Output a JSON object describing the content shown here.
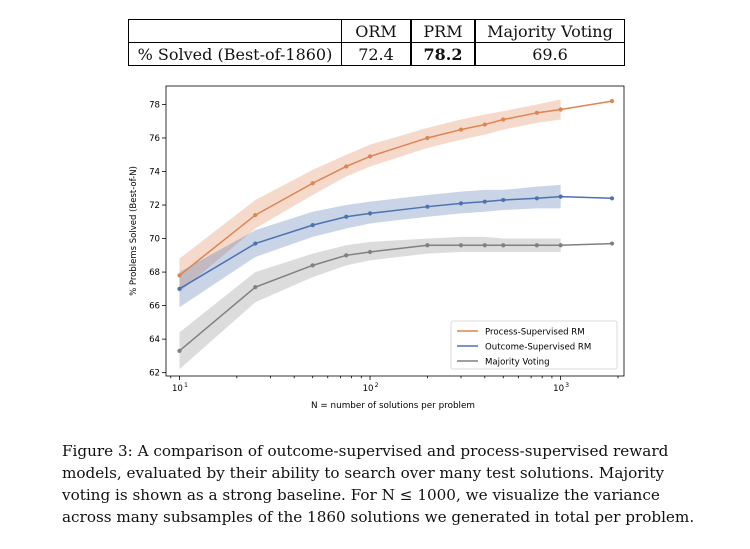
{
  "table": {
    "headers": [
      "",
      "ORM",
      "PRM",
      "Majority Voting"
    ],
    "row_label": "% Solved (Best-of-1860)",
    "row_values": [
      "72.4",
      "78.2",
      "69.6"
    ],
    "bold_value_index": 1
  },
  "chart_data": {
    "type": "line",
    "title": "",
    "xlabel": "N = number of solutions per problem",
    "ylabel": "% Problems Solved (Best-of-N)",
    "xscale": "log",
    "xlim": [
      8.5,
      2150
    ],
    "ylim": [
      61.8,
      79.1
    ],
    "xticks": [
      10,
      100,
      1000
    ],
    "xtick_labels": [
      "10",
      "10",
      "10"
    ],
    "xtick_exponents": [
      "1",
      "2",
      "3"
    ],
    "yticks": [
      62,
      64,
      66,
      68,
      70,
      72,
      74,
      76,
      78
    ],
    "ytick_labels": [
      "62",
      "64",
      "66",
      "68",
      "70",
      "72",
      "74",
      "76",
      "78"
    ],
    "grid": false,
    "legend_position": "lower-right",
    "series": [
      {
        "name": "Process-Supervised RM",
        "color": "#dd8452",
        "line_color": "#dd8452",
        "x": [
          10,
          25,
          50,
          75,
          100,
          200,
          300,
          400,
          500,
          750,
          1000,
          1860
        ],
        "y": [
          67.8,
          71.4,
          73.3,
          74.3,
          74.9,
          76.0,
          76.5,
          76.8,
          77.1,
          77.5,
          77.7,
          78.2
        ],
        "band_low": [
          66.8,
          70.6,
          72.6,
          73.7,
          74.3,
          75.4,
          75.9,
          76.2,
          76.5,
          76.9,
          77.1
        ],
        "band_high": [
          68.8,
          72.3,
          74.1,
          75.0,
          75.6,
          76.6,
          77.1,
          77.4,
          77.6,
          78.0,
          78.3
        ]
      },
      {
        "name": "Outcome-Supervised RM",
        "color": "#4c72b0",
        "line_color": "#4c72b0",
        "x": [
          10,
          25,
          50,
          75,
          100,
          200,
          300,
          400,
          500,
          750,
          1000,
          1860
        ],
        "y": [
          67.0,
          69.7,
          70.8,
          71.3,
          71.5,
          71.9,
          72.1,
          72.2,
          72.3,
          72.4,
          72.5,
          72.4
        ],
        "band_low": [
          65.9,
          68.9,
          70.1,
          70.6,
          70.9,
          71.3,
          71.5,
          71.6,
          71.7,
          71.8,
          71.8
        ],
        "band_high": [
          68.0,
          70.5,
          71.6,
          72.0,
          72.2,
          72.6,
          72.8,
          72.9,
          72.9,
          73.1,
          73.2
        ]
      },
      {
        "name": "Majority Voting",
        "color": "#8c8c8c",
        "line_color": "#808080",
        "x": [
          10,
          25,
          50,
          75,
          100,
          200,
          300,
          400,
          500,
          750,
          1000,
          1860
        ],
        "y": [
          63.3,
          67.1,
          68.4,
          69.0,
          69.2,
          69.6,
          69.6,
          69.6,
          69.6,
          69.6,
          69.6,
          69.7
        ],
        "band_low": [
          62.2,
          66.2,
          67.7,
          68.4,
          68.7,
          69.1,
          69.2,
          69.2,
          69.2,
          69.2,
          69.2
        ],
        "band_high": [
          64.4,
          68.0,
          69.1,
          69.6,
          69.8,
          70.0,
          70.1,
          70.1,
          70.0,
          70.0,
          70.0
        ]
      }
    ]
  },
  "caption": {
    "lines": [
      "Figure 3: A comparison of outcome-supervised and process-supervised reward",
      "models, evaluated by their ability to search over many test solutions. Majority",
      "voting is shown as a strong baseline. For N ≤ 1000, we visualize the variance",
      "across many subsamples of the 1860 solutions we generated in total per problem."
    ]
  }
}
